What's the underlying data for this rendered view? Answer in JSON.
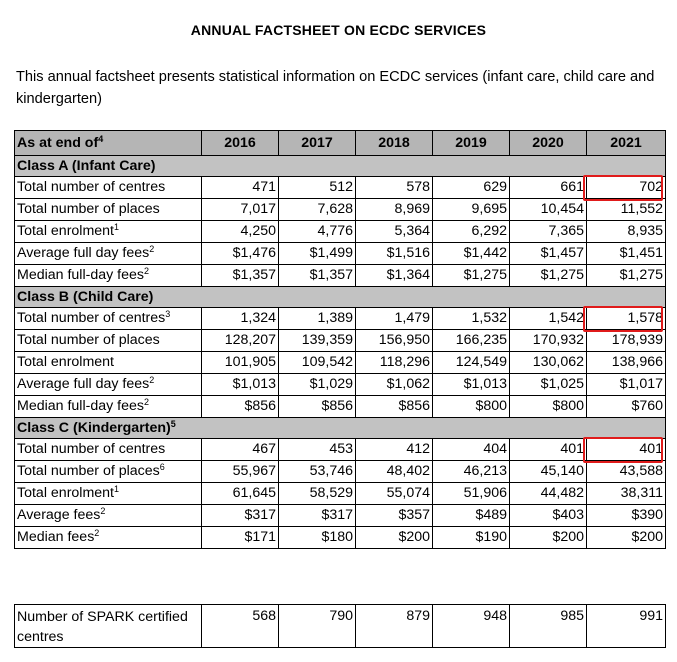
{
  "title": "ANNUAL FACTSHEET ON ECDC SERVICES",
  "intro": "This annual factsheet presents statistical information on ECDC services (infant care, child care and kindergarten)",
  "table": {
    "header_label": "As at end of",
    "header_sup": "4",
    "years": [
      "2016",
      "2017",
      "2018",
      "2019",
      "2020",
      "2021"
    ],
    "sections": [
      {
        "name": "Class A (Infant Care)",
        "name_sup": "",
        "rows": [
          {
            "label": "Total number of centres",
            "sup": "",
            "values": [
              "471",
              "512",
              "578",
              "629",
              "661",
              "702"
            ],
            "highlight_last": true
          },
          {
            "label": "Total number of places",
            "sup": "",
            "values": [
              "7,017",
              "7,628",
              "8,969",
              "9,695",
              "10,454",
              "11,552"
            ],
            "highlight_last": false
          },
          {
            "label": "Total enrolment",
            "sup": "1",
            "values": [
              "4,250",
              "4,776",
              "5,364",
              "6,292",
              "7,365",
              "8,935"
            ],
            "highlight_last": false
          },
          {
            "label": "Average full day fees",
            "sup": "2",
            "values": [
              "$1,476",
              "$1,499",
              "$1,516",
              "$1,442",
              "$1,457",
              "$1,451"
            ],
            "highlight_last": false
          },
          {
            "label": "Median full-day fees",
            "sup": "2",
            "values": [
              "$1,357",
              "$1,357",
              "$1,364",
              "$1,275",
              "$1,275",
              "$1,275"
            ],
            "highlight_last": false
          }
        ]
      },
      {
        "name": "Class B (Child Care)",
        "name_sup": "",
        "rows": [
          {
            "label": "Total number of centres",
            "sup": "3",
            "values": [
              "1,324",
              "1,389",
              "1,479",
              "1,532",
              "1,542",
              "1,578"
            ],
            "highlight_last": true
          },
          {
            "label": "Total number of places",
            "sup": "",
            "values": [
              "128,207",
              "139,359",
              "156,950",
              "166,235",
              "170,932",
              "178,939"
            ],
            "highlight_last": false
          },
          {
            "label": "Total enrolment",
            "sup": "",
            "values": [
              "101,905",
              "109,542",
              "118,296",
              "124,549",
              "130,062",
              "138,966"
            ],
            "highlight_last": false
          },
          {
            "label": "Average full day fees",
            "sup": "2",
            "values": [
              "$1,013",
              "$1,029",
              "$1,062",
              "$1,013",
              "$1,025",
              "$1,017"
            ],
            "highlight_last": false
          },
          {
            "label": "Median full-day fees",
            "sup": "2",
            "values": [
              "$856",
              "$856",
              "$856",
              "$800",
              "$800",
              "$760"
            ],
            "highlight_last": false
          }
        ]
      },
      {
        "name": "Class C (Kindergarten)",
        "name_sup": "5",
        "rows": [
          {
            "label": "Total number of centres",
            "sup": "",
            "values": [
              "467",
              "453",
              "412",
              "404",
              "401",
              "401"
            ],
            "highlight_last": true
          },
          {
            "label": "Total number of places",
            "sup": "6",
            "values": [
              "55,967",
              "53,746",
              "48,402",
              "46,213",
              "45,140",
              "43,588"
            ],
            "highlight_last": false
          },
          {
            "label": "Total enrolment",
            "sup": "1",
            "values": [
              "61,645",
              "58,529",
              "55,074",
              "51,906",
              "44,482",
              "38,311"
            ],
            "highlight_last": false
          },
          {
            "label": "Average fees",
            "sup": "2",
            "values": [
              "$317",
              "$317",
              "$357",
              "$489",
              "$403",
              "$390"
            ],
            "highlight_last": false
          },
          {
            "label": "Median fees",
            "sup": "2",
            "values": [
              "$171",
              "$180",
              "$200",
              "$190",
              "$200",
              "$200"
            ],
            "highlight_last": false
          }
        ]
      }
    ]
  },
  "spark": {
    "label": "Number of SPARK certified centres",
    "values": [
      "568",
      "790",
      "879",
      "948",
      "985",
      "991"
    ]
  },
  "colors": {
    "header_bg": "#b5b5b5",
    "section_bg": "#c2c2c2",
    "highlight": "#e01b1b"
  }
}
